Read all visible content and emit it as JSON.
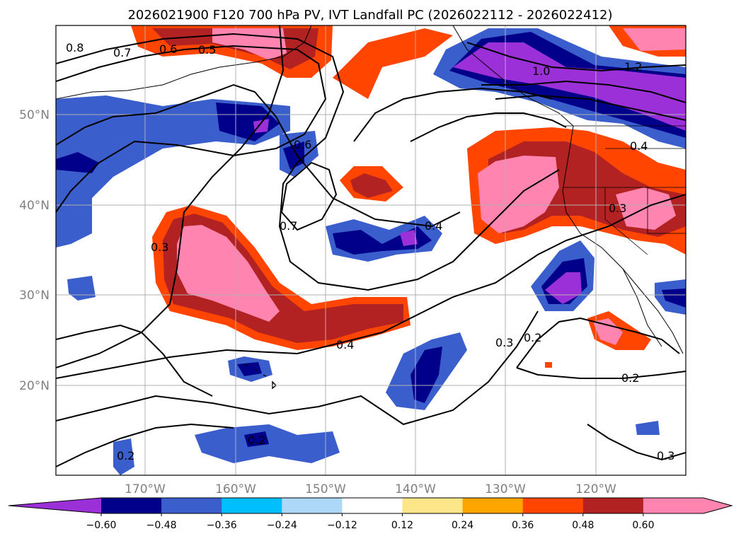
{
  "title": "2026021900 F120 700 hPa PV, IVT Landfall PC (2026022112 - 2026022412)",
  "map": {
    "lat_labels": [
      "50°N",
      "40°N",
      "30°N",
      "20°N"
    ],
    "lon_labels": [
      "170°W",
      "160°W",
      "150°W",
      "140°W",
      "130°W",
      "120°W"
    ],
    "contour_labels": [
      "0.8",
      "0.7",
      "0.6",
      "0.5",
      "1.0",
      "1.2",
      "0.6",
      "0.4",
      "0.7",
      "0.3",
      "0.4",
      "0.3",
      "0.3",
      "0.2",
      "0.4",
      "0.2",
      "0.2",
      "0.3",
      "0.2"
    ]
  },
  "colorbar": {
    "ticks": [
      "−0.60",
      "−0.48",
      "−0.36",
      "−0.24",
      "−0.12",
      "0.12",
      "0.24",
      "0.36",
      "0.48",
      "0.60"
    ],
    "colors": [
      "#9b30d8",
      "#00008b",
      "#3a5fcd",
      "#00bfff",
      "#add8f7",
      "#ffffff",
      "#fde68a",
      "#ffa500",
      "#ff4500",
      "#b22222",
      "#ff85b0",
      "#ff85b0"
    ]
  }
}
